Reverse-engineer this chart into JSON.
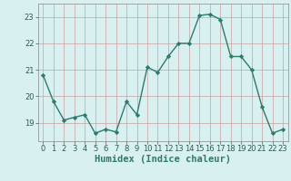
{
  "x": [
    0,
    1,
    2,
    3,
    4,
    5,
    6,
    7,
    8,
    9,
    10,
    11,
    12,
    13,
    14,
    15,
    16,
    17,
    18,
    19,
    20,
    21,
    22,
    23
  ],
  "y": [
    20.8,
    19.8,
    19.1,
    19.2,
    19.3,
    18.6,
    18.75,
    18.65,
    19.8,
    19.3,
    21.1,
    20.9,
    21.5,
    22.0,
    22.0,
    23.05,
    23.1,
    22.9,
    21.5,
    21.5,
    21.0,
    19.6,
    18.6,
    18.75
  ],
  "line_color": "#2d7a6e",
  "marker": "D",
  "marker_size": 2.2,
  "line_width": 1.0,
  "bg_color": "#d9f0f0",
  "grid_color": "#c8a0a0",
  "xlabel": "Humidex (Indice chaleur)",
  "ylim": [
    18.3,
    23.5
  ],
  "xlim": [
    -0.5,
    23.5
  ],
  "yticks": [
    19,
    20,
    21,
    22,
    23
  ],
  "xticks": [
    0,
    1,
    2,
    3,
    4,
    5,
    6,
    7,
    8,
    9,
    10,
    11,
    12,
    13,
    14,
    15,
    16,
    17,
    18,
    19,
    20,
    21,
    22,
    23
  ],
  "tick_fontsize": 6.0,
  "xlabel_fontsize": 7.5
}
